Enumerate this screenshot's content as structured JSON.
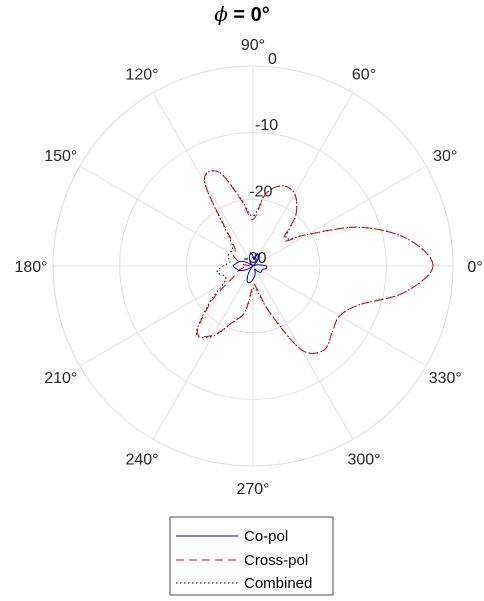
{
  "chart_data": {
    "type": "polar-line",
    "title": {
      "symbol": "ϕ",
      "text": " = 0°"
    },
    "angle_labels": [
      "0°",
      "30°",
      "60°",
      "90°",
      "120°",
      "150°",
      "180°",
      "210°",
      "240°",
      "270°",
      "300°",
      "330°"
    ],
    "radial_ticks": [
      0,
      -10,
      -20,
      -30
    ],
    "radial_tick_labels": [
      "0",
      "-10",
      "-20",
      "-30"
    ],
    "rlim": [
      -30,
      0
    ],
    "grid": true,
    "legend": {
      "placement": "bottom",
      "entries": [
        "Co-pol",
        "Cross-pol",
        "Combined"
      ]
    },
    "angles_deg": [
      0,
      10,
      20,
      30,
      40,
      50,
      60,
      70,
      80,
      90,
      100,
      110,
      120,
      130,
      140,
      150,
      160,
      170,
      180,
      190,
      200,
      210,
      220,
      230,
      240,
      250,
      260,
      270,
      280,
      290,
      300,
      310,
      320,
      330,
      340,
      350,
      360
    ],
    "series": [
      {
        "name": "Co-pol",
        "color": "#0000cc",
        "dash": "solid",
        "values": [
          -28,
          -29,
          -29.5,
          -30,
          -30,
          -29,
          -28.5,
          -28,
          -29,
          -28.5,
          -28,
          -28.5,
          -29,
          -29.5,
          -30,
          -29,
          -28,
          -27.5,
          -27,
          -27.5,
          -28,
          -29,
          -30,
          -29.5,
          -28.5,
          -27.5,
          -27.5,
          -28,
          -28.5,
          -29,
          -29.5,
          -29,
          -28.5,
          -28.5,
          -28.5,
          -28,
          -28
        ]
      },
      {
        "name": "Cross-pol",
        "color": "#dd0000",
        "dash": "dashed",
        "values": [
          -3,
          -6.5,
          -13,
          -20.5,
          -24,
          -20,
          -17.5,
          -17.2,
          -19,
          -23,
          -20,
          -15,
          -15.5,
          -25,
          -26.5,
          -26.5,
          -27.5,
          -28.5,
          -29.5,
          -28.5,
          -27.5,
          -26.5,
          -22,
          -17,
          -18,
          -21,
          -23,
          -27,
          -26.5,
          -22.5,
          -15.5,
          -13.5,
          -14.5,
          -15,
          -13,
          -7,
          -3
        ]
      },
      {
        "name": "Combined",
        "color": "#000000",
        "dash": "dotted",
        "values": [
          -3,
          -6.5,
          -13,
          -20.5,
          -23.5,
          -20,
          -17.5,
          -17.2,
          -19,
          -22.5,
          -19.8,
          -15,
          -15.5,
          -24.5,
          -26,
          -26,
          -26,
          -26.5,
          -25.5,
          -24.5,
          -25.5,
          -25,
          -21.5,
          -16.8,
          -17.8,
          -21,
          -23,
          -26.5,
          -26,
          -22.5,
          -15.5,
          -13.5,
          -14.5,
          -15,
          -13,
          -7,
          -3
        ]
      }
    ]
  }
}
